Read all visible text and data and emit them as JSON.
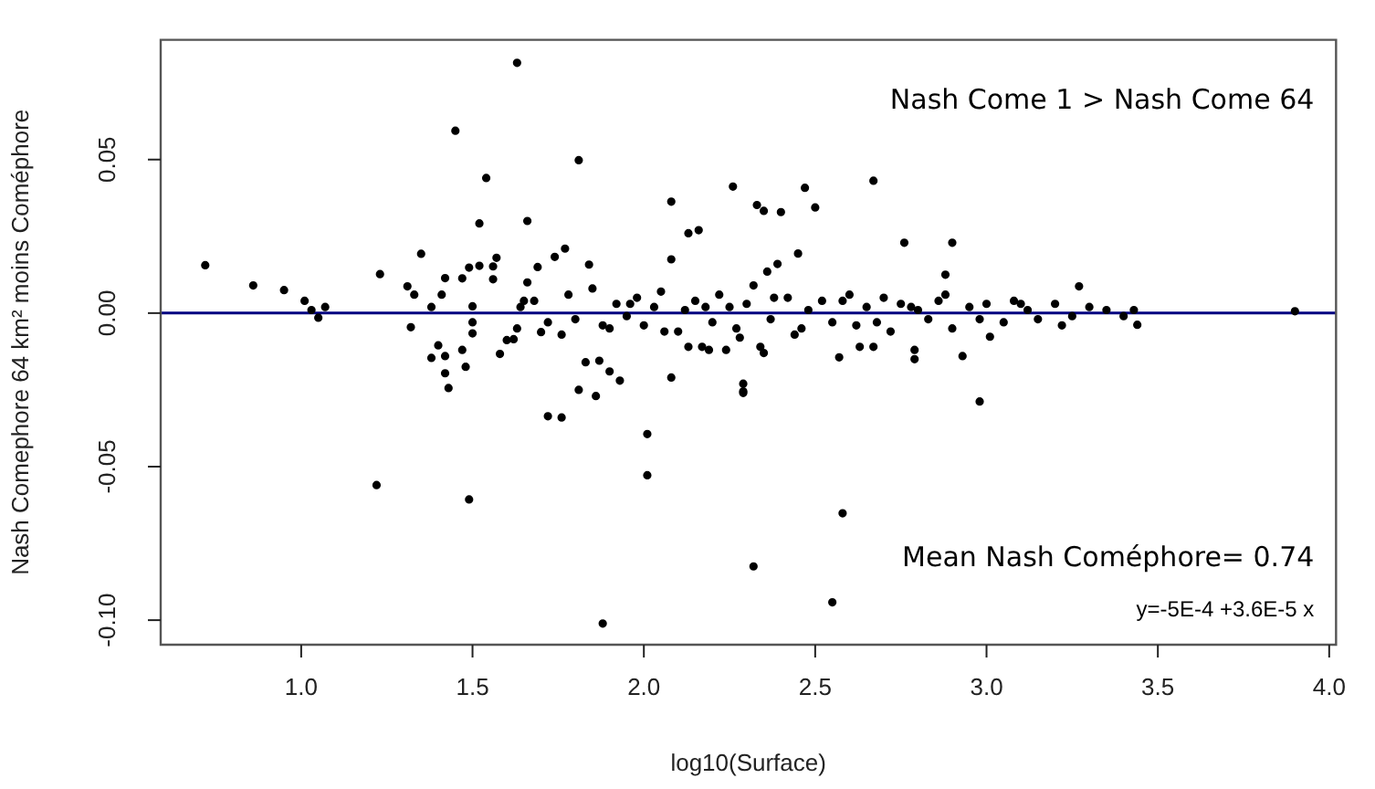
{
  "chart_data": {
    "type": "scatter",
    "xlabel": "log10(Surface)",
    "ylabel": "Nash Comephore 64 km² moins Coméphore",
    "annotations": [
      "Nash Come 1 > Nash Come 64",
      "Mean Nash Coméphore= 0.74",
      "y=-5E-4 +3.6E-5 x"
    ],
    "xlim": [
      0.59,
      4.02
    ],
    "xticks": [
      {
        "value": 1,
        "label": "1.0"
      },
      1.5,
      {
        "value": 2,
        "label": "2.0"
      },
      2.5,
      {
        "value": 3,
        "label": "3.0"
      },
      3.5,
      {
        "value": 4,
        "label": "4.0"
      }
    ],
    "ylim": [
      -0.108,
      0.089
    ],
    "yticks": [
      {
        "value": -0.1,
        "label": "-0.10"
      },
      -0.05,
      {
        "value": 0,
        "label": "0.00"
      },
      0.05
    ],
    "ref_lines": [
      {
        "axis": "y",
        "value": 0,
        "color": "#000080"
      }
    ],
    "marker": "circle",
    "series": [
      {
        "color": "#000000",
        "x": [
          0.72,
          0.86,
          0.95,
          1.01,
          1.03,
          1.05,
          1.07,
          1.23,
          1.22,
          1.63,
          1.45,
          1.54,
          1.52,
          1.66,
          1.81,
          2.08,
          1.35,
          1.77,
          1.74,
          1.69,
          1.84,
          1.57,
          1.42,
          1.41,
          1.31,
          1.33,
          1.38,
          1.32,
          1.38,
          1.4,
          1.42,
          1.42,
          1.43,
          1.48,
          1.47,
          1.5,
          1.5,
          1.5,
          1.47,
          1.49,
          1.52,
          1.56,
          1.58,
          1.56,
          1.6,
          1.62,
          1.63,
          1.64,
          1.65,
          1.66,
          1.7,
          1.76,
          1.81,
          1.86,
          1.83,
          1.87,
          1.9,
          1.93,
          2.08,
          2.08,
          1.72,
          1.76,
          2.01,
          2.01,
          1.49,
          1.88,
          2.58,
          2.32,
          2.55,
          2.98,
          2.29,
          2.67,
          2.47,
          2.26,
          2.5,
          2.33,
          2.35,
          2.4,
          2.13,
          2.16,
          2.76,
          2.9,
          2.45,
          2.39,
          2.36,
          2.88,
          3.27,
          3.9,
          3.44,
          2.29,
          2.29,
          2.57,
          2.79,
          2.93,
          2.79,
          3.01,
          2.63,
          2.67,
          2.34,
          2.35,
          2.24,
          2.19,
          2.13,
          2.17,
          1.68,
          1.72,
          1.78,
          1.8,
          1.85,
          1.9,
          1.92,
          1.95,
          1.98,
          2.0,
          2.03,
          2.05,
          2.1,
          2.12,
          2.15,
          2.2,
          2.22,
          2.25,
          2.27,
          2.3,
          2.32,
          2.37,
          2.42,
          2.44,
          2.48,
          2.52,
          2.55,
          2.6,
          2.62,
          2.65,
          2.7,
          2.72,
          2.75,
          2.8,
          2.83,
          2.86,
          2.9,
          2.95,
          3.0,
          3.05,
          3.08,
          3.12,
          3.15,
          3.2,
          3.25,
          3.3,
          3.35,
          3.4,
          3.43,
          1.88,
          1.96,
          2.06,
          2.18,
          2.28,
          2.38,
          2.46,
          2.58,
          2.68,
          2.78,
          2.88,
          2.98,
          3.1,
          3.22
        ],
        "values": [
          0.0156,
          0.009,
          0.0075,
          0.004,
          0.001,
          -0.0015,
          0.002,
          0.0127,
          -0.056,
          0.0815,
          0.0594,
          0.044,
          0.0292,
          0.03,
          0.0498,
          0.0363,
          0.0193,
          0.021,
          0.0183,
          0.015,
          0.0158,
          0.018,
          0.0114,
          0.006,
          0.0087,
          0.006,
          0.002,
          -0.0046,
          -0.0146,
          -0.0105,
          -0.014,
          -0.0196,
          -0.0244,
          -0.0175,
          -0.012,
          -0.003,
          -0.0066,
          0.0022,
          0.0113,
          0.0148,
          0.0154,
          0.0152,
          -0.0133,
          0.011,
          -0.0088,
          -0.0085,
          -0.005,
          0.002,
          0.004,
          0.01,
          -0.0062,
          -0.007,
          -0.025,
          -0.027,
          -0.016,
          -0.0155,
          -0.019,
          -0.022,
          -0.021,
          0.0175,
          -0.0336,
          -0.034,
          -0.0394,
          -0.0528,
          -0.0607,
          -0.1011,
          -0.0652,
          -0.0825,
          -0.0942,
          -0.0288,
          -0.0255,
          0.0431,
          0.0408,
          0.0412,
          0.0344,
          0.0352,
          0.0333,
          0.0329,
          0.026,
          0.027,
          0.0229,
          0.0229,
          0.0194,
          0.016,
          0.0135,
          0.0125,
          0.0087,
          0.0006,
          -0.0038,
          -0.023,
          -0.026,
          -0.0144,
          -0.015,
          -0.014,
          -0.012,
          -0.0077,
          -0.011,
          -0.011,
          -0.011,
          -0.013,
          -0.012,
          -0.012,
          -0.011,
          -0.011,
          0.004,
          -0.003,
          0.006,
          -0.002,
          0.008,
          -0.005,
          0.003,
          -0.001,
          0.005,
          -0.004,
          0.002,
          0.007,
          -0.006,
          0.001,
          0.004,
          -0.003,
          0.006,
          0.002,
          -0.005,
          0.003,
          0.009,
          -0.002,
          0.005,
          -0.007,
          0.001,
          0.004,
          -0.003,
          0.006,
          -0.004,
          0.002,
          0.005,
          -0.006,
          0.003,
          0.001,
          -0.002,
          0.004,
          -0.005,
          0.002,
          0.003,
          -0.003,
          0.004,
          0.001,
          -0.002,
          0.003,
          -0.001,
          0.002,
          0.001,
          -0.001,
          0.001,
          -0.004,
          0.003,
          -0.006,
          0.002,
          -0.008,
          0.005,
          -0.005,
          0.004,
          -0.003,
          0.002,
          0.006,
          -0.002,
          0.003,
          -0.004
        ]
      }
    ]
  }
}
